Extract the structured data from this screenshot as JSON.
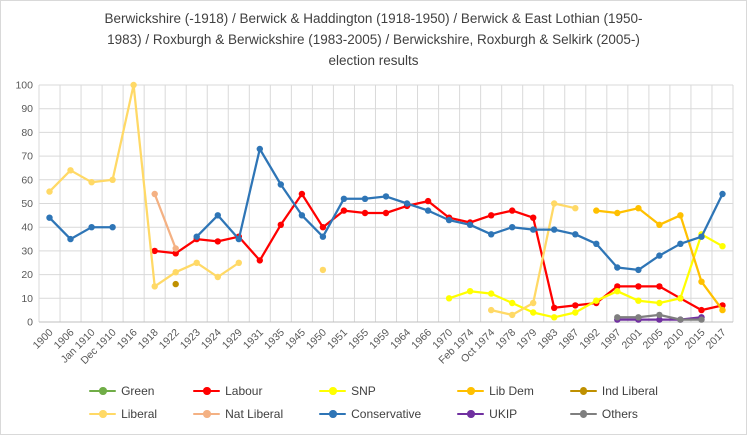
{
  "title_lines": [
    "Berwickshire (-1918) / Berwick & Haddington (1918-1950) / Berwick & East Lothian (1950-",
    "1983) / Roxburgh & Berwickshire (1983-2005) / Berwickshire, Roxburgh & Selkirk (2005-)",
    "election results"
  ],
  "chart_data": {
    "type": "line",
    "title": "Berwickshire (-1918) / Berwick & Haddington (1918-1950) / Berwick & East Lothian (1950-1983) / Roxburgh & Berwickshire (1983-2005) / Berwickshire, Roxburgh & Selkirk (2005-) election results",
    "ylabel": "",
    "xlabel": "",
    "ylim": [
      0,
      100
    ],
    "ytick_interval": 10,
    "grid": true,
    "legend_position": "bottom",
    "categories": [
      "1900",
      "1906",
      "Jan 1910",
      "Dec 1910",
      "1916",
      "1918",
      "1922",
      "1923",
      "1924",
      "1929",
      "1931",
      "1935",
      "1945",
      "1950",
      "1951",
      "1955",
      "1959",
      "1964",
      "1966",
      "1970",
      "Feb 1974",
      "Oct 1974",
      "1978",
      "1979",
      "1983",
      "1987",
      "1992",
      "1997",
      "2001",
      "2005",
      "2010",
      "2015",
      "2017"
    ],
    "series": [
      {
        "name": "Green",
        "color": "#70ad47",
        "values": [
          null,
          null,
          null,
          null,
          null,
          null,
          null,
          null,
          null,
          null,
          null,
          null,
          null,
          null,
          null,
          null,
          null,
          null,
          null,
          null,
          null,
          null,
          null,
          null,
          null,
          null,
          null,
          null,
          null,
          null,
          null,
          null,
          null
        ]
      },
      {
        "name": "Labour",
        "color": "#ff0000",
        "values": [
          null,
          null,
          null,
          null,
          null,
          30,
          29,
          35,
          34,
          36,
          26,
          41,
          54,
          40,
          47,
          46,
          46,
          49,
          51,
          44,
          42,
          45,
          47,
          44,
          6,
          7,
          8,
          15,
          15,
          15,
          10,
          5,
          7
        ]
      },
      {
        "name": "SNP",
        "color": "#ffff00",
        "values": [
          null,
          null,
          null,
          null,
          null,
          null,
          null,
          null,
          null,
          null,
          null,
          null,
          null,
          null,
          null,
          null,
          null,
          null,
          null,
          10,
          13,
          12,
          8,
          4,
          2,
          4,
          9,
          13,
          9,
          8,
          10,
          37,
          32
        ]
      },
      {
        "name": "Lib Dem",
        "color": "#ffc000",
        "values": [
          null,
          null,
          null,
          null,
          null,
          null,
          null,
          null,
          null,
          null,
          null,
          null,
          null,
          null,
          null,
          null,
          null,
          null,
          null,
          null,
          null,
          null,
          null,
          null,
          null,
          null,
          47,
          46,
          48,
          41,
          45,
          17,
          5
        ]
      },
      {
        "name": "Ind Liberal",
        "color": "#bf9000",
        "values": [
          null,
          null,
          null,
          null,
          null,
          null,
          16,
          null,
          null,
          null,
          null,
          null,
          null,
          null,
          null,
          null,
          null,
          null,
          null,
          null,
          null,
          null,
          null,
          null,
          null,
          null,
          null,
          null,
          null,
          null,
          null,
          null,
          null
        ]
      },
      {
        "name": "Liberal",
        "color": "#ffd966",
        "values": [
          55,
          64,
          59,
          60,
          100,
          15,
          21,
          25,
          19,
          25,
          null,
          null,
          null,
          22,
          null,
          null,
          null,
          null,
          null,
          null,
          null,
          5,
          3,
          8,
          50,
          48,
          null,
          null,
          null,
          null,
          null,
          null,
          null
        ]
      },
      {
        "name": "Nat Liberal",
        "color": "#f4b183",
        "values": [
          null,
          null,
          null,
          null,
          null,
          54,
          31,
          null,
          null,
          null,
          null,
          null,
          null,
          null,
          null,
          null,
          null,
          null,
          null,
          null,
          null,
          null,
          null,
          null,
          null,
          null,
          null,
          null,
          null,
          null,
          null,
          null,
          null
        ]
      },
      {
        "name": "Conservative",
        "color": "#2e75b6",
        "values": [
          44,
          35,
          40,
          40,
          null,
          null,
          null,
          36,
          45,
          35,
          73,
          58,
          45,
          36,
          52,
          52,
          53,
          50,
          47,
          43,
          41,
          37,
          40,
          39,
          39,
          37,
          33,
          23,
          22,
          28,
          33,
          36,
          54
        ]
      },
      {
        "name": "UKIP",
        "color": "#7030a0",
        "values": [
          null,
          null,
          null,
          null,
          null,
          null,
          null,
          null,
          null,
          null,
          null,
          null,
          null,
          null,
          null,
          null,
          null,
          null,
          null,
          null,
          null,
          null,
          null,
          null,
          null,
          null,
          null,
          1,
          1,
          1,
          1,
          2,
          null
        ]
      },
      {
        "name": "Others",
        "color": "#7f7f7f",
        "values": [
          null,
          null,
          null,
          null,
          null,
          null,
          null,
          null,
          null,
          null,
          null,
          null,
          null,
          null,
          null,
          null,
          null,
          null,
          null,
          null,
          null,
          null,
          null,
          null,
          null,
          null,
          null,
          2,
          2,
          3,
          1,
          1,
          null
        ]
      }
    ],
    "legend_order": [
      "Green",
      "Labour",
      "SNP",
      "Lib Dem",
      "Ind Liberal",
      "Liberal",
      "Nat Liberal",
      "Conservative",
      "UKIP",
      "Others"
    ]
  }
}
